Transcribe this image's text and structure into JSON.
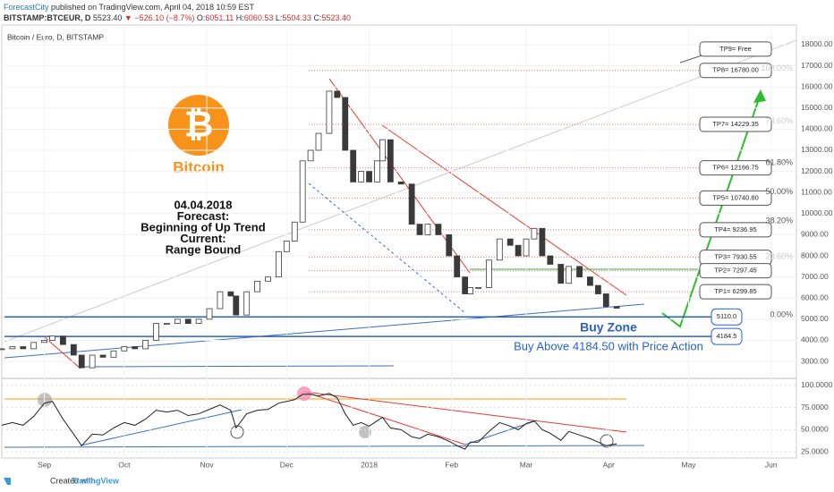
{
  "header": {
    "author": "ForecastCity",
    "published": "published on TradingView.com, April 04, 2018 10:59 EST",
    "symbol": "BITSTAMP:BTCEUR, D",
    "last": "5523.40",
    "change": "▼ −526.10 (−8.7%)",
    "open_label": "O:",
    "open": "6051.11",
    "high_label": "H:",
    "high": "6060.53",
    "low_label": "L:",
    "low": "5504.33",
    "close_label": "C:",
    "close": "5523.40"
  },
  "chart_data": [
    {
      "type": "candlestick",
      "title": "Bitcoin / Euro, D, BITSTAMP",
      "color": "#3a3a3a",
      "x": [
        -16,
        -12,
        -8,
        -4,
        0,
        3,
        7,
        11,
        14,
        18,
        22,
        26,
        30,
        34,
        38,
        42,
        46,
        50,
        54,
        58,
        62,
        66,
        70,
        72,
        76,
        80,
        84,
        88,
        91,
        94,
        97,
        100,
        103,
        107,
        110,
        113,
        116,
        119,
        122,
        125,
        127,
        130,
        134,
        138,
        141,
        144,
        148,
        152,
        155,
        158,
        160,
        163,
        167,
        171,
        175,
        178,
        181,
        184,
        187,
        190,
        194,
        197,
        201,
        205,
        208,
        211,
        215
      ],
      "values": [
        3600,
        3700,
        3600,
        3900,
        4000,
        4200,
        3800,
        3300,
        2700,
        3300,
        3200,
        3500,
        3700,
        3600,
        4000,
        4800,
        4800,
        5000,
        4800,
        5000,
        5500,
        6300,
        6100,
        5200,
        6300,
        6800,
        7000,
        8200,
        8700,
        9600,
        12500,
        13000,
        13800,
        15800,
        15500,
        13000,
        11500,
        12000,
        11500,
        12500,
        13500,
        11500,
        11400,
        9500,
        9000,
        9500,
        9000,
        8000,
        7000,
        6200,
        6500,
        6500,
        7800,
        8800,
        8500,
        8000,
        8800,
        9300,
        8000,
        7600,
        6700,
        7500,
        7000,
        6600,
        6200,
        5600,
        5523.4
      ],
      "xlim": [
        -16,
        282.5
      ],
      "xticks": [
        {
          "value": 0,
          "label": "Sep"
        },
        {
          "value": 30,
          "label": "Oct"
        },
        {
          "value": 61,
          "label": "Nov"
        },
        {
          "value": 91,
          "label": "Dec"
        },
        {
          "value": 122,
          "label": "2018"
        },
        {
          "value": 153,
          "label": "Feb"
        },
        {
          "value": 181,
          "label": "Mar"
        },
        {
          "value": 212,
          "label": "Apr"
        },
        {
          "value": 242,
          "label": "May"
        },
        {
          "value": 273,
          "label": "Jun"
        }
      ],
      "ylim": [
        2240,
        18930
      ],
      "yticks": [
        {
          "value": 3000,
          "label": "3000.00"
        },
        {
          "value": 4000,
          "label": "4000.00"
        },
        {
          "value": 5000,
          "label": "5000.00"
        },
        {
          "value": 6000,
          "label": "6000.00"
        },
        {
          "value": 7000,
          "label": "7000.00"
        },
        {
          "value": 8000,
          "label": "8000.00"
        },
        {
          "value": 9000,
          "label": "9000.00"
        },
        {
          "value": 10000,
          "label": "10000.00"
        },
        {
          "value": 11000,
          "label": "11000.00"
        },
        {
          "value": 12000,
          "label": "12000.00"
        },
        {
          "value": 13000,
          "label": "13000.00"
        },
        {
          "value": 14000,
          "label": "14000.00"
        },
        {
          "value": 15000,
          "label": "15000.00"
        },
        {
          "value": 16000,
          "label": "16000.00"
        },
        {
          "value": 17000,
          "label": "17000.00"
        },
        {
          "value": 18000,
          "label": "18000.00"
        }
      ]
    },
    {
      "type": "line",
      "color": "#222222",
      "values": [
        55,
        58,
        55,
        65,
        80,
        82,
        62,
        45,
        32,
        45,
        44,
        52,
        58,
        55,
        62,
        72,
        70,
        72,
        66,
        68,
        73,
        78,
        72,
        52,
        68,
        72,
        73,
        80,
        82,
        84,
        90,
        90,
        88,
        91,
        86,
        68,
        55,
        58,
        54,
        60,
        64,
        52,
        50,
        42,
        40,
        45,
        42,
        37,
        32,
        28,
        36,
        36,
        48,
        58,
        54,
        50,
        57,
        60,
        50,
        46,
        38,
        48,
        44,
        40,
        36,
        32,
        34
      ],
      "ylim": [
        18,
        107
      ],
      "yticks": [
        {
          "value": 25,
          "label": "25.0000"
        },
        {
          "value": 50,
          "label": "50.0000"
        },
        {
          "value": 75,
          "label": "75.0000"
        },
        {
          "value": 100,
          "label": "100.0000"
        }
      ]
    }
  ],
  "annotations": {
    "logo_text": "Bitcoin",
    "forecast": [
      "04.04.2018",
      "Forecast:",
      "Beginning of Up Trend",
      "Current:",
      "Range Bound"
    ],
    "fib_levels": [
      {
        "label": "100.00%",
        "price": 16780
      },
      {
        "label": "78.60%",
        "price": 14283
      },
      {
        "label": "61.80%",
        "price": 12322
      },
      {
        "label": "50.00%",
        "price": 10945
      },
      {
        "label": "38.20%",
        "price": 9568
      },
      {
        "label": "23.60%",
        "price": 7864
      },
      {
        "label": "0.00%",
        "price": 5110
      }
    ],
    "targets": [
      {
        "label": "TP9= Free",
        "price": 17790
      },
      {
        "label": "TP8= 16780.00",
        "price": 16780
      },
      {
        "label": "TP7= 14229.35",
        "price": 14229.35
      },
      {
        "label": "TP6= 12166.75",
        "price": 12166.75
      },
      {
        "label": "TP5= 10740.80",
        "price": 10740.8
      },
      {
        "label": "TP4= 9236.95",
        "price": 9236.95
      },
      {
        "label": "TP3= 7930.55",
        "price": 7930.55
      },
      {
        "label": "TP2= 7297.45",
        "price": 7297.45
      },
      {
        "label": "TP1= 6299.85",
        "price": 6299.85
      }
    ],
    "buy_levels": [
      {
        "label": "5110.0",
        "price": 5110
      },
      {
        "label": "4184.5",
        "price": 4184.5
      }
    ],
    "buy_zone": "Buy Zone",
    "buy_note": "Buy Above 4184.50 with Price Action"
  },
  "footer": {
    "created": "Created with",
    "brand": "TradingView"
  }
}
